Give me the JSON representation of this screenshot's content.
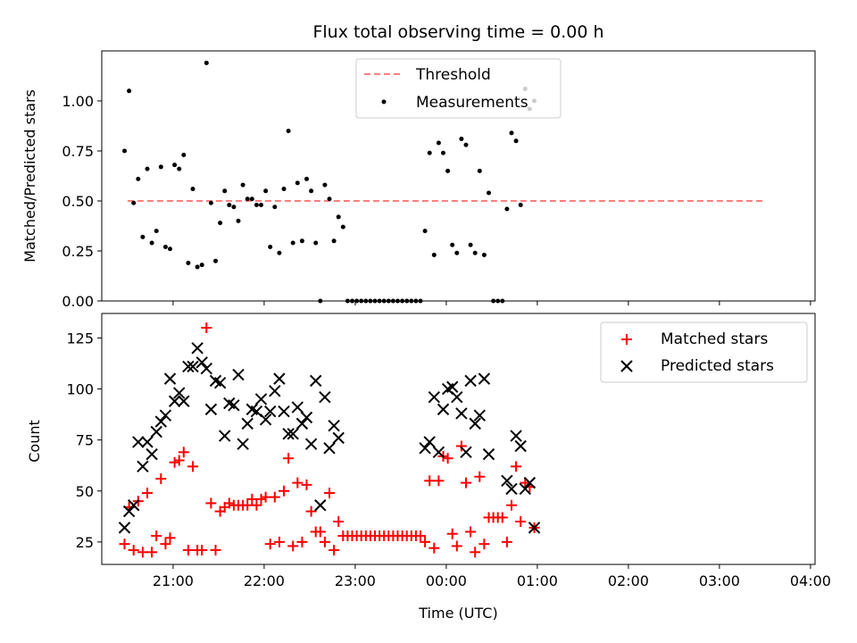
{
  "chart_data": [
    {
      "type": "scatter",
      "title": "Flux total observing time = 0.00 h",
      "xlabel": "",
      "ylabel": "Matched/Predicted stars",
      "xlim": [
        "20:13",
        "04:03"
      ],
      "ylim": [
        0,
        1.25
      ],
      "yticks": [
        "0.00",
        "0.25",
        "0.50",
        "0.75",
        "1.00"
      ],
      "xticks": [
        "21:00",
        "22:00",
        "23:00",
        "00:00",
        "01:00",
        "02:00",
        "03:00",
        "04:00"
      ],
      "legend": {
        "position": "top-center",
        "entries": [
          "Threshold",
          "Measurements"
        ]
      },
      "colors": {
        "threshold": "#ff7f7f",
        "measurements": "#000000"
      },
      "threshold": {
        "name": "Threshold",
        "y": 0.5,
        "x": [
          "20:30",
          "03:30"
        ]
      },
      "series": [
        {
          "name": "Measurements",
          "points": [
            [
              "20:28",
              0.75
            ],
            [
              "20:31",
              1.05
            ],
            [
              "20:34",
              0.49
            ],
            [
              "20:37",
              0.61
            ],
            [
              "20:40",
              0.32
            ],
            [
              "20:43",
              0.66
            ],
            [
              "20:46",
              0.29
            ],
            [
              "20:49",
              0.35
            ],
            [
              "20:52",
              0.67
            ],
            [
              "20:55",
              0.27
            ],
            [
              "20:58",
              0.26
            ],
            [
              "21:01",
              0.68
            ],
            [
              "21:04",
              0.66
            ],
            [
              "21:07",
              0.73
            ],
            [
              "21:10",
              0.19
            ],
            [
              "21:13",
              0.56
            ],
            [
              "21:16",
              0.17
            ],
            [
              "21:19",
              0.18
            ],
            [
              "21:22",
              1.19
            ],
            [
              "21:25",
              0.49
            ],
            [
              "21:28",
              0.2
            ],
            [
              "21:31",
              0.39
            ],
            [
              "21:34",
              0.55
            ],
            [
              "21:37",
              0.48
            ],
            [
              "21:40",
              0.47
            ],
            [
              "21:43",
              0.4
            ],
            [
              "21:46",
              0.58
            ],
            [
              "21:49",
              0.51
            ],
            [
              "21:52",
              0.51
            ],
            [
              "21:55",
              0.48
            ],
            [
              "21:58",
              0.48
            ],
            [
              "22:01",
              0.55
            ],
            [
              "22:04",
              0.27
            ],
            [
              "22:07",
              0.47
            ],
            [
              "22:10",
              0.24
            ],
            [
              "22:13",
              0.56
            ],
            [
              "22:16",
              0.85
            ],
            [
              "22:19",
              0.29
            ],
            [
              "22:22",
              0.59
            ],
            [
              "22:25",
              0.3
            ],
            [
              "22:28",
              0.61
            ],
            [
              "22:31",
              0.55
            ],
            [
              "22:34",
              0.29
            ],
            [
              "22:37",
              0.0
            ],
            [
              "22:40",
              0.58
            ],
            [
              "22:43",
              0.51
            ],
            [
              "22:46",
              0.3
            ],
            [
              "22:49",
              0.42
            ],
            [
              "22:52",
              0.37
            ],
            [
              "22:55",
              0.0
            ],
            [
              "22:58",
              0.0
            ],
            [
              "23:01",
              0.0
            ],
            [
              "23:04",
              0.0
            ],
            [
              "23:07",
              0.0
            ],
            [
              "23:10",
              0.0
            ],
            [
              "23:13",
              0.0
            ],
            [
              "23:16",
              0.0
            ],
            [
              "23:19",
              0.0
            ],
            [
              "23:22",
              0.0
            ],
            [
              "23:25",
              0.0
            ],
            [
              "23:28",
              0.0
            ],
            [
              "23:31",
              0.0
            ],
            [
              "23:34",
              0.0
            ],
            [
              "23:37",
              0.0
            ],
            [
              "23:40",
              0.0
            ],
            [
              "23:43",
              0.0
            ],
            [
              "23:46",
              0.35
            ],
            [
              "23:49",
              0.74
            ],
            [
              "23:52",
              0.23
            ],
            [
              "23:55",
              0.79
            ],
            [
              "23:58",
              0.74
            ],
            [
              "00:01",
              0.65
            ],
            [
              "00:04",
              0.28
            ],
            [
              "00:07",
              0.24
            ],
            [
              "00:10",
              0.81
            ],
            [
              "00:13",
              0.78
            ],
            [
              "00:16",
              0.28
            ],
            [
              "00:19",
              0.24
            ],
            [
              "00:22",
              0.65
            ],
            [
              "00:25",
              0.23
            ],
            [
              "00:28",
              0.54
            ],
            [
              "00:31",
              0.0
            ],
            [
              "00:34",
              0.0
            ],
            [
              "00:37",
              0.0
            ],
            [
              "00:40",
              0.46
            ],
            [
              "00:43",
              0.84
            ],
            [
              "00:46",
              0.8
            ],
            [
              "00:49",
              0.48
            ],
            [
              "00:52",
              1.06
            ],
            [
              "00:55",
              0.96
            ],
            [
              "00:58",
              1.0
            ]
          ]
        }
      ]
    },
    {
      "type": "scatter",
      "title": "",
      "xlabel": "Time (UTC)",
      "ylabel": "Count",
      "xlim": [
        "20:13",
        "04:03"
      ],
      "ylim": [
        14,
        137
      ],
      "yticks": [
        "25",
        "50",
        "75",
        "100",
        "125"
      ],
      "xticks": [
        "21:00",
        "22:00",
        "23:00",
        "00:00",
        "01:00",
        "02:00",
        "03:00",
        "04:00"
      ],
      "legend": {
        "position": "top-right",
        "entries": [
          "Matched stars",
          "Predicted stars"
        ]
      },
      "colors": {
        "matched": "#ff0000",
        "predicted": "#000000"
      },
      "series": [
        {
          "name": "Matched stars",
          "points": [
            [
              "20:28",
              24
            ],
            [
              "20:31",
              42
            ],
            [
              "20:34",
              21
            ],
            [
              "20:37",
              45
            ],
            [
              "20:40",
              20
            ],
            [
              "20:43",
              49
            ],
            [
              "20:46",
              20
            ],
            [
              "20:49",
              28
            ],
            [
              "20:52",
              56
            ],
            [
              "20:55",
              24
            ],
            [
              "20:58",
              27
            ],
            [
              "21:01",
              64
            ],
            [
              "21:04",
              65
            ],
            [
              "21:07",
              69
            ],
            [
              "21:10",
              21
            ],
            [
              "21:13",
              62
            ],
            [
              "21:16",
              21
            ],
            [
              "21:19",
              21
            ],
            [
              "21:22",
              130
            ],
            [
              "21:25",
              44
            ],
            [
              "21:28",
              21
            ],
            [
              "21:31",
              40
            ],
            [
              "21:34",
              42
            ],
            [
              "21:37",
              44
            ],
            [
              "21:40",
              43
            ],
            [
              "21:43",
              43
            ],
            [
              "21:46",
              43
            ],
            [
              "21:49",
              43
            ],
            [
              "21:52",
              46
            ],
            [
              "21:55",
              43
            ],
            [
              "21:58",
              46
            ],
            [
              "22:01",
              47
            ],
            [
              "22:04",
              24
            ],
            [
              "22:07",
              47
            ],
            [
              "22:10",
              25
            ],
            [
              "22:13",
              50
            ],
            [
              "22:16",
              66
            ],
            [
              "22:19",
              23
            ],
            [
              "22:22",
              54
            ],
            [
              "22:25",
              25
            ],
            [
              "22:28",
              53
            ],
            [
              "22:31",
              40
            ],
            [
              "22:34",
              30
            ],
            [
              "22:37",
              30
            ],
            [
              "22:40",
              25
            ],
            [
              "22:43",
              49
            ],
            [
              "22:46",
              21
            ],
            [
              "22:49",
              35
            ],
            [
              "22:52",
              28
            ],
            [
              "22:55",
              28
            ],
            [
              "22:58",
              28
            ],
            [
              "23:01",
              28
            ],
            [
              "23:04",
              28
            ],
            [
              "23:07",
              28
            ],
            [
              "23:10",
              28
            ],
            [
              "23:13",
              28
            ],
            [
              "23:16",
              28
            ],
            [
              "23:19",
              28
            ],
            [
              "23:22",
              28
            ],
            [
              "23:25",
              28
            ],
            [
              "23:28",
              28
            ],
            [
              "23:31",
              28
            ],
            [
              "23:34",
              28
            ],
            [
              "23:37",
              28
            ],
            [
              "23:40",
              28
            ],
            [
              "23:43",
              28
            ],
            [
              "23:46",
              25
            ],
            [
              "23:49",
              55
            ],
            [
              "23:52",
              22
            ],
            [
              "23:55",
              55
            ],
            [
              "23:58",
              67
            ],
            [
              "00:01",
              66
            ],
            [
              "00:04",
              29
            ],
            [
              "00:07",
              23
            ],
            [
              "00:10",
              72
            ],
            [
              "00:13",
              54
            ],
            [
              "00:16",
              30
            ],
            [
              "00:19",
              20
            ],
            [
              "00:22",
              57
            ],
            [
              "00:25",
              24
            ],
            [
              "00:28",
              37
            ],
            [
              "00:31",
              37
            ],
            [
              "00:34",
              37
            ],
            [
              "00:37",
              37
            ],
            [
              "00:40",
              25
            ],
            [
              "00:43",
              43
            ],
            [
              "00:46",
              62
            ],
            [
              "00:49",
              35
            ],
            [
              "00:52",
              54
            ],
            [
              "00:55",
              52
            ],
            [
              "00:58",
              32
            ]
          ]
        },
        {
          "name": "Predicted stars",
          "points": [
            [
              "20:28",
              32
            ],
            [
              "20:31",
              40
            ],
            [
              "20:34",
              43
            ],
            [
              "20:37",
              74
            ],
            [
              "20:40",
              62
            ],
            [
              "20:43",
              74
            ],
            [
              "20:46",
              68
            ],
            [
              "20:49",
              79
            ],
            [
              "20:52",
              84
            ],
            [
              "20:55",
              87
            ],
            [
              "20:58",
              105
            ],
            [
              "21:01",
              94
            ],
            [
              "21:04",
              98
            ],
            [
              "21:07",
              94
            ],
            [
              "21:10",
              111
            ],
            [
              "21:13",
              111
            ],
            [
              "21:16",
              120
            ],
            [
              "21:19",
              113
            ],
            [
              "21:22",
              110
            ],
            [
              "21:25",
              90
            ],
            [
              "21:28",
              104
            ],
            [
              "21:31",
              103
            ],
            [
              "21:34",
              77
            ],
            [
              "21:37",
              93
            ],
            [
              "21:40",
              92
            ],
            [
              "21:43",
              107
            ],
            [
              "21:46",
              73
            ],
            [
              "21:49",
              83
            ],
            [
              "21:52",
              90
            ],
            [
              "21:55",
              89
            ],
            [
              "21:58",
              95
            ],
            [
              "22:01",
              85
            ],
            [
              "22:04",
              89
            ],
            [
              "22:07",
              99
            ],
            [
              "22:10",
              105
            ],
            [
              "22:13",
              89
            ],
            [
              "22:16",
              78
            ],
            [
              "22:19",
              78
            ],
            [
              "22:22",
              91
            ],
            [
              "22:25",
              83
            ],
            [
              "22:28",
              86
            ],
            [
              "22:31",
              73
            ],
            [
              "22:34",
              104
            ],
            [
              "22:37",
              43
            ],
            [
              "22:40",
              96
            ],
            [
              "22:43",
              71
            ],
            [
              "22:46",
              82
            ],
            [
              "22:49",
              76
            ],
            [
              "23:46",
              71
            ],
            [
              "23:49",
              74
            ],
            [
              "23:52",
              96
            ],
            [
              "23:55",
              69
            ],
            [
              "23:58",
              90
            ],
            [
              "00:01",
              100
            ],
            [
              "00:04",
              101
            ],
            [
              "00:07",
              96
            ],
            [
              "00:10",
              88
            ],
            [
              "00:13",
              69
            ],
            [
              "00:16",
              104
            ],
            [
              "00:19",
              83
            ],
            [
              "00:22",
              87
            ],
            [
              "00:25",
              105
            ],
            [
              "00:28",
              68
            ],
            [
              "00:40",
              55
            ],
            [
              "00:43",
              51
            ],
            [
              "00:46",
              77
            ],
            [
              "00:49",
              72
            ],
            [
              "00:52",
              51
            ],
            [
              "00:55",
              54
            ],
            [
              "00:58",
              32
            ]
          ]
        }
      ]
    }
  ]
}
